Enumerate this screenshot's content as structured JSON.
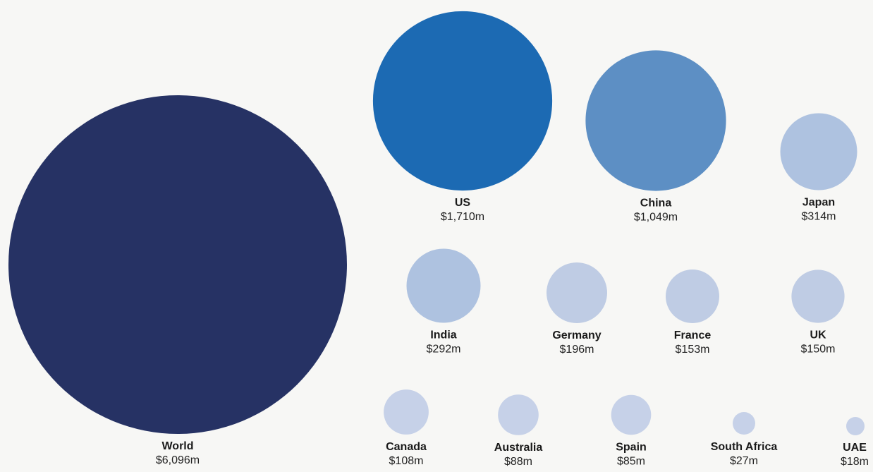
{
  "chart_data": {
    "type": "bubble",
    "title": "",
    "value_unit": "$m",
    "items": [
      {
        "name": "World",
        "value": 6096,
        "value_label": "$6,096m",
        "color": "#263264"
      },
      {
        "name": "US",
        "value": 1710,
        "value_label": "$1,710m",
        "color": "#1c6ab3"
      },
      {
        "name": "China",
        "value": 1049,
        "value_label": "$1,049m",
        "color": "#5d8fc4"
      },
      {
        "name": "Japan",
        "value": 314,
        "value_label": "$314m",
        "color": "#aec2e0"
      },
      {
        "name": "India",
        "value": 292,
        "value_label": "$292m",
        "color": "#aec2e0"
      },
      {
        "name": "Germany",
        "value": 196,
        "value_label": "$196m",
        "color": "#bfcce4"
      },
      {
        "name": "France",
        "value": 153,
        "value_label": "$153m",
        "color": "#bfcce4"
      },
      {
        "name": "UK",
        "value": 150,
        "value_label": "$150m",
        "color": "#bfcce4"
      },
      {
        "name": "Canada",
        "value": 108,
        "value_label": "$108m",
        "color": "#c6d1e8"
      },
      {
        "name": "Australia",
        "value": 88,
        "value_label": "$88m",
        "color": "#c6d1e8"
      },
      {
        "name": "Spain",
        "value": 85,
        "value_label": "$85m",
        "color": "#c6d1e8"
      },
      {
        "name": "South Africa",
        "value": 27,
        "value_label": "$27m",
        "color": "#c6d1e8"
      },
      {
        "name": "UAE",
        "value": 18,
        "value_label": "$18m",
        "color": "#c6d1e8"
      }
    ]
  }
}
